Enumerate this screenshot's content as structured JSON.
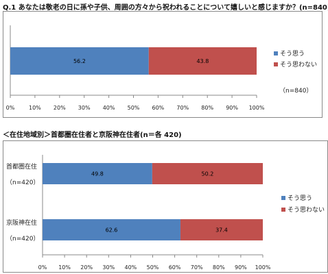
{
  "q1_title": "Q.1 あなたは敬老の日に孫や子供、周囲の方々から祝われることについて嬉しいと感じますか？(n=840)",
  "q2_title": "＜在住地域別＞首都圏在住者と京阪神在住者(n＝各 420)",
  "chart_data": [
    {
      "type": "bar",
      "orientation": "horizontal-stacked",
      "categories": [
        ""
      ],
      "series": [
        {
          "name": "そう思う",
          "values": [
            56.2
          ],
          "color": "#4f81bd"
        },
        {
          "name": "そう思わない",
          "values": [
            43.8
          ],
          "color": "#c0504d"
        }
      ],
      "xlim": [
        0,
        100
      ],
      "tick_labels": [
        "0%",
        "10%",
        "20%",
        "30%",
        "40%",
        "50%",
        "60%",
        "70%",
        "80%",
        "90%",
        "100%"
      ],
      "legend": "right",
      "annotation": "（n=840）",
      "grid": false
    },
    {
      "type": "bar",
      "orientation": "horizontal-stacked",
      "categories": [
        "首都圏在住",
        "京阪神在住"
      ],
      "category_notes": [
        "（n=420）",
        "（n=420）"
      ],
      "series": [
        {
          "name": "そう思う",
          "values": [
            49.8,
            62.6
          ],
          "color": "#4f81bd"
        },
        {
          "name": "そう思わない",
          "values": [
            50.2,
            37.4
          ],
          "color": "#c0504d"
        }
      ],
      "xlim": [
        0,
        100
      ],
      "tick_labels": [
        "0%",
        "10%",
        "20%",
        "30%",
        "40%",
        "50%",
        "60%",
        "70%",
        "80%",
        "90%",
        "100%"
      ],
      "legend": "right",
      "grid": false
    }
  ]
}
